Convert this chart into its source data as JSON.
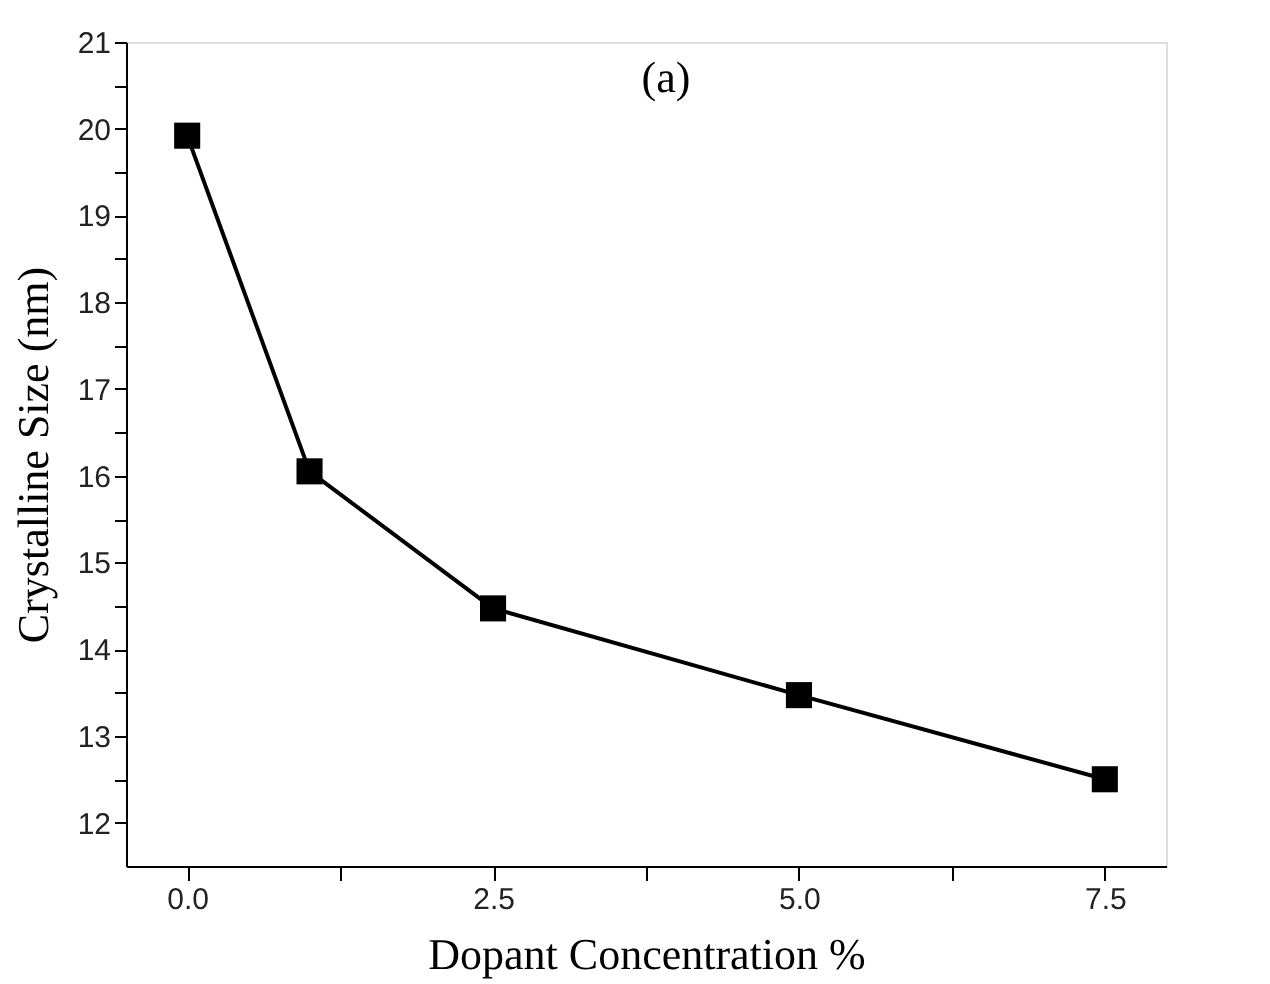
{
  "chart_data": {
    "type": "line",
    "xlabel": "Dopant Concentration %",
    "ylabel": "Crystalline Size (nm)",
    "annotations": [
      "(a)"
    ],
    "x": [
      0,
      1,
      2.5,
      5,
      7.5
    ],
    "series": [
      {
        "color": "#000000",
        "values": [
          19.92,
          16.05,
          14.47,
          13.47,
          12.5
        ]
      }
    ],
    "xlim": [
      -0.5,
      8.0
    ],
    "xticks": [
      {
        "value": 0,
        "label": "0.0"
      },
      {
        "value": 1.25,
        "label": null
      },
      {
        "value": 2.5,
        "label": "2.5"
      },
      {
        "value": 3.75,
        "label": null
      },
      {
        "value": 5,
        "label": "5.0"
      },
      {
        "value": 6.25,
        "label": null
      },
      {
        "value": 7.5,
        "label": "7.5"
      }
    ],
    "ylim": [
      11.5,
      21
    ],
    "yticks": [
      12,
      {
        "value": 12.5,
        "label": null
      },
      13,
      {
        "value": 13.5,
        "label": null
      },
      14,
      {
        "value": 14.5,
        "label": null
      },
      15,
      {
        "value": 15.5,
        "label": null
      },
      16,
      {
        "value": 16.5,
        "label": null
      },
      17,
      {
        "value": 17.5,
        "label": null
      },
      18,
      {
        "value": 18.5,
        "label": null
      },
      19,
      {
        "value": 19.5,
        "label": null
      },
      20,
      {
        "value": 20.5,
        "label": null
      },
      21
    ],
    "marker": "square",
    "line_style": "solid",
    "grid": false,
    "legend": false
  }
}
